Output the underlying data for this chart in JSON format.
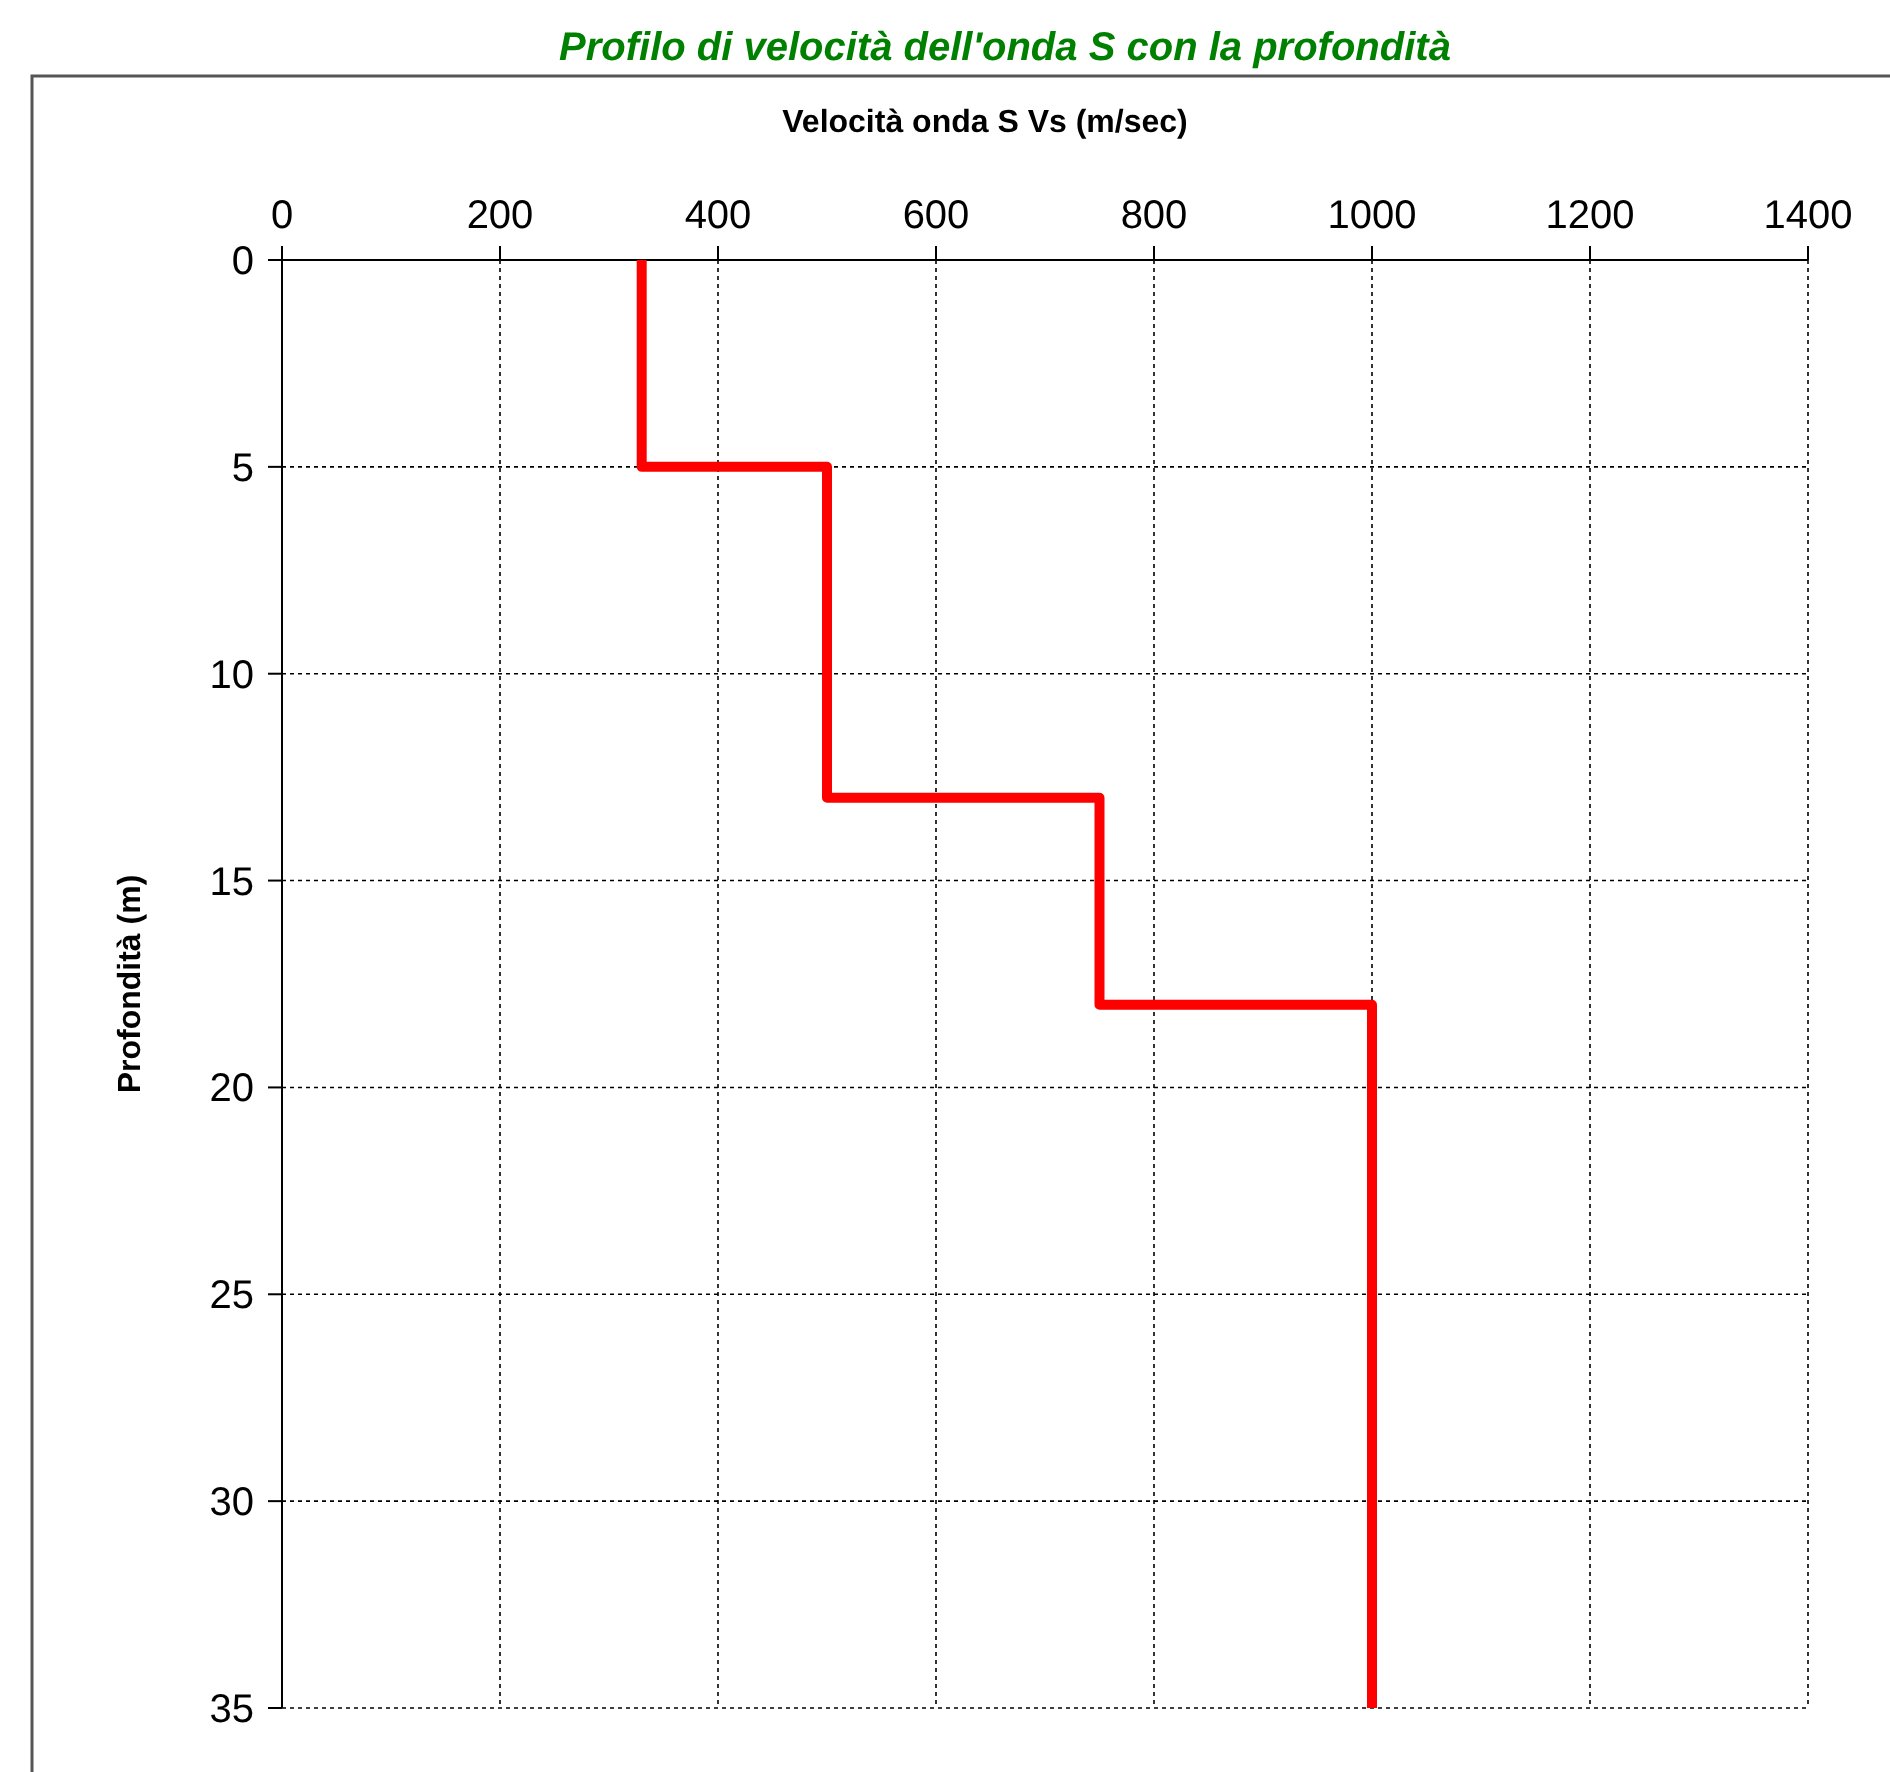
{
  "chart_data": {
    "type": "line",
    "title": "Profilo di velocità dell'onda S con la profondità",
    "xlabel": "Velocità onda S Vs (m/sec)",
    "ylabel": "Profondità (m)",
    "series": [
      {
        "color": "#ff0000",
        "x": [
          330,
          330,
          500,
          500,
          750,
          750,
          1000,
          1000
        ],
        "values": [
          0,
          5,
          5,
          13,
          13,
          18,
          18,
          35
        ]
      }
    ],
    "xlim": [
      0,
      1400
    ],
    "xticks": [
      0,
      200,
      400,
      600,
      800,
      1000,
      1200,
      1400
    ],
    "ylim": [
      35,
      0
    ],
    "yticks": [
      0,
      5,
      10,
      15,
      20,
      25,
      30,
      35
    ],
    "grid": true,
    "marker": "none",
    "line_style": "solid"
  }
}
